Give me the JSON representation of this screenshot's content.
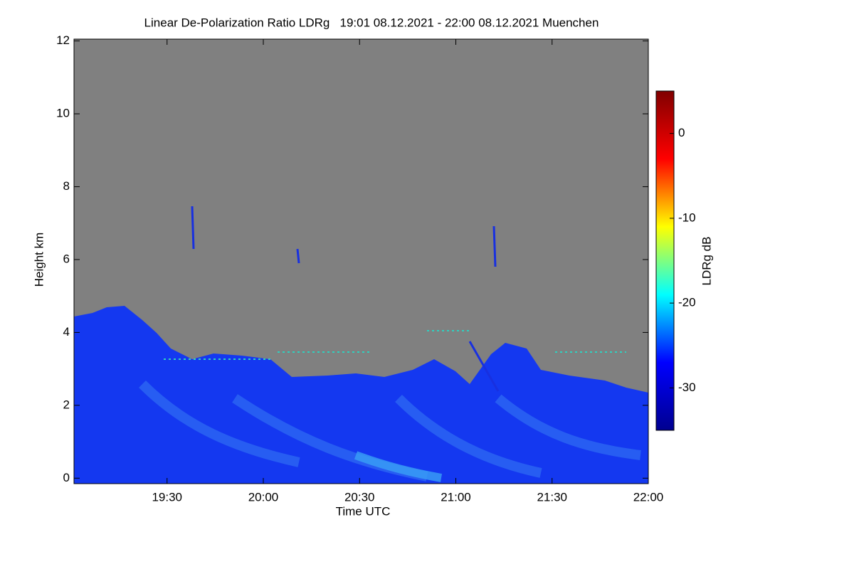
{
  "chart_data": {
    "type": "heatmap",
    "title": "Linear De-Polarization Ratio LDRg   19:01 08.12.2021 - 22:00 08.12.2021 Muenchen",
    "x_label": "Time UTC",
    "y_label": "Height km",
    "colorbar_label": "LDRg dB",
    "xlim": [
      1141,
      1320
    ],
    "xticks": [
      {
        "value": 1170,
        "label": "19:30"
      },
      {
        "value": 1200,
        "label": "20:00"
      },
      {
        "value": 1230,
        "label": "20:30"
      },
      {
        "value": 1260,
        "label": "21:00"
      },
      {
        "value": 1290,
        "label": "21:30"
      },
      {
        "value": 1320,
        "label": "22:00"
      }
    ],
    "ylim": [
      -0.15,
      12.05
    ],
    "yticks": [
      0,
      2,
      4,
      6,
      8,
      10,
      12
    ],
    "clim": [
      -35,
      5
    ],
    "cticks": [
      0,
      -10,
      -20,
      -30
    ],
    "colormap": [
      "#00008f",
      "#0000ff",
      "#00ffff",
      "#ffff00",
      "#ff0000",
      "#800000"
    ],
    "missing_color": "#808080"
  }
}
